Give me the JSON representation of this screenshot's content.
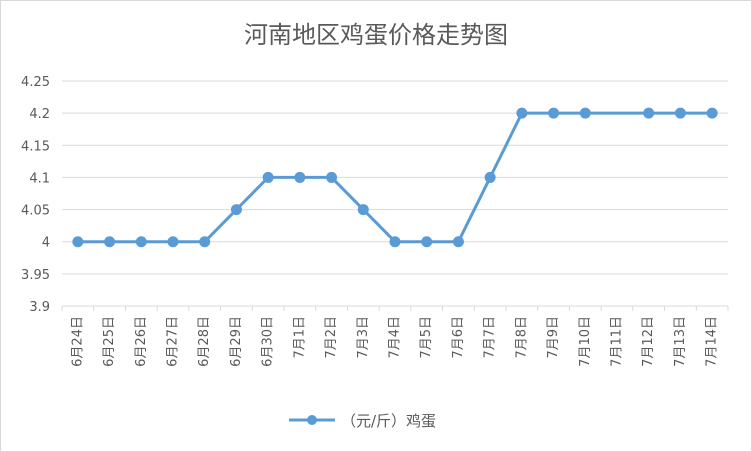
{
  "chart_data": {
    "type": "line",
    "title": "河南地区鸡蛋价格走势图",
    "categories": [
      "6月24日",
      "6月25日",
      "6月26日",
      "6月27日",
      "6月28日",
      "6月29日",
      "6月30日",
      "7月1日",
      "7月2日",
      "7月3日",
      "7月4日",
      "7月5日",
      "7月6日",
      "7月7日",
      "7月8日",
      "7月9日",
      "7月10日",
      "7月11日",
      "7月12日",
      "7月13日",
      "7月14日"
    ],
    "series": [
      {
        "name": "（元/斤）鸡蛋",
        "values": [
          4.0,
          4.0,
          4.0,
          4.0,
          4.0,
          4.05,
          4.1,
          4.1,
          4.1,
          4.05,
          4.0,
          4.0,
          4.0,
          4.1,
          4.2,
          4.2,
          4.2,
          null,
          4.2,
          4.2,
          4.2
        ],
        "color": "#5b9bd5"
      }
    ],
    "yticks": [
      "3.9",
      "3.95",
      "4",
      "4.05",
      "4.1",
      "4.15",
      "4.2",
      "4.25"
    ],
    "ylim": [
      3.9,
      4.25
    ],
    "grid": true,
    "legend": "bottom-center"
  }
}
